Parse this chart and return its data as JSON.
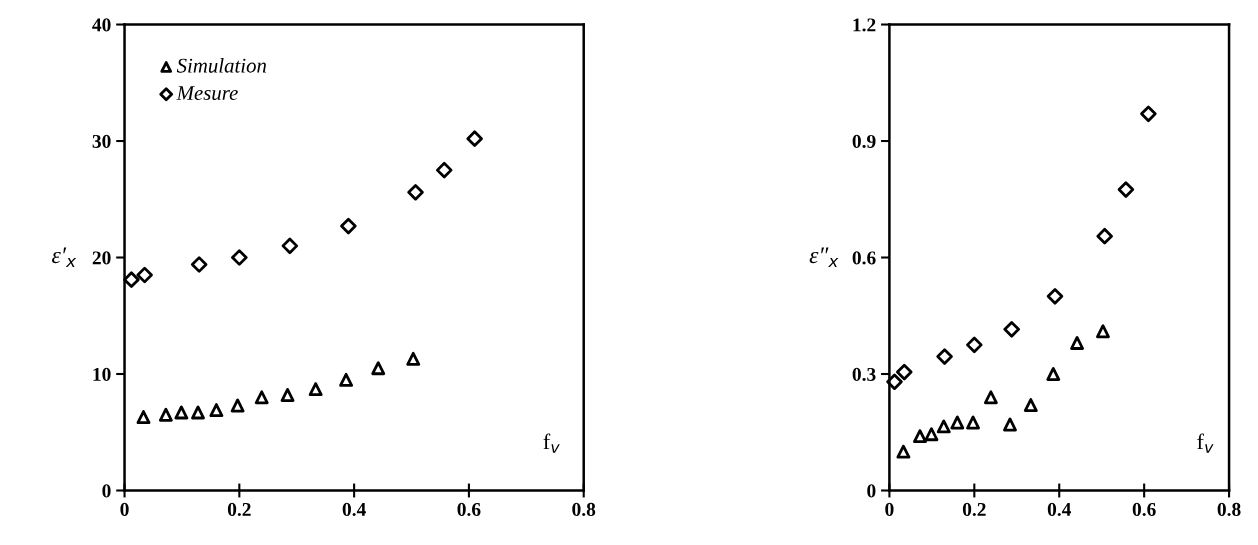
{
  "chart_data": [
    {
      "type": "scatter",
      "xlabel": "f$_{v}$",
      "ylabel": "ε′$_{x}$",
      "xlim": [
        0,
        0.8
      ],
      "ylim": [
        0,
        40
      ],
      "xticks": [
        0,
        0.2,
        0.4,
        0.6,
        0.8
      ],
      "yticks": [
        0,
        10,
        20,
        30,
        40
      ],
      "grid": false,
      "legend": "top left",
      "series": [
        {
          "name": "Simulation",
          "color": "#000000",
          "marker": "triangle",
          "x": [
            0.033,
            0.072,
            0.099,
            0.128,
            0.16,
            0.197,
            0.239,
            0.284,
            0.333,
            0.386,
            0.442,
            0.503
          ],
          "values": [
            6.3,
            6.5,
            6.7,
            6.7,
            6.9,
            7.3,
            8.0,
            8.2,
            8.7,
            9.5,
            10.5,
            11.3
          ]
        },
        {
          "name": "Mesure",
          "color": "#000000",
          "marker": "diamond",
          "x": [
            0.012,
            0.035,
            0.13,
            0.2,
            0.288,
            0.39,
            0.507,
            0.557,
            0.61
          ],
          "values": [
            18.1,
            18.5,
            19.4,
            20.0,
            21.0,
            22.7,
            25.6,
            27.5,
            30.2
          ]
        }
      ]
    },
    {
      "type": "scatter",
      "xlabel": "f$_{v}$",
      "ylabel": "ε″$_{x}$",
      "xlim": [
        0,
        0.8
      ],
      "ylim": [
        0,
        1.2
      ],
      "xticks": [
        0,
        0.2,
        0.4,
        0.6,
        0.8
      ],
      "yticks": [
        0,
        0.3,
        0.6,
        0.9,
        1.2
      ],
      "grid": false,
      "series": [
        {
          "color": "#000000",
          "marker": "triangle",
          "x": [
            0.033,
            0.072,
            0.099,
            0.128,
            0.16,
            0.197,
            0.239,
            0.284,
            0.333,
            0.386,
            0.442,
            0.503
          ],
          "values": [
            0.1,
            0.14,
            0.145,
            0.165,
            0.175,
            0.175,
            0.24,
            0.17,
            0.22,
            0.3,
            0.38,
            0.41
          ]
        },
        {
          "color": "#000000",
          "marker": "diamond",
          "x": [
            0.012,
            0.035,
            0.13,
            0.2,
            0.288,
            0.39,
            0.507,
            0.557,
            0.61
          ],
          "values": [
            0.28,
            0.305,
            0.345,
            0.375,
            0.415,
            0.5,
            0.655,
            0.775,
            0.97
          ]
        }
      ]
    }
  ]
}
